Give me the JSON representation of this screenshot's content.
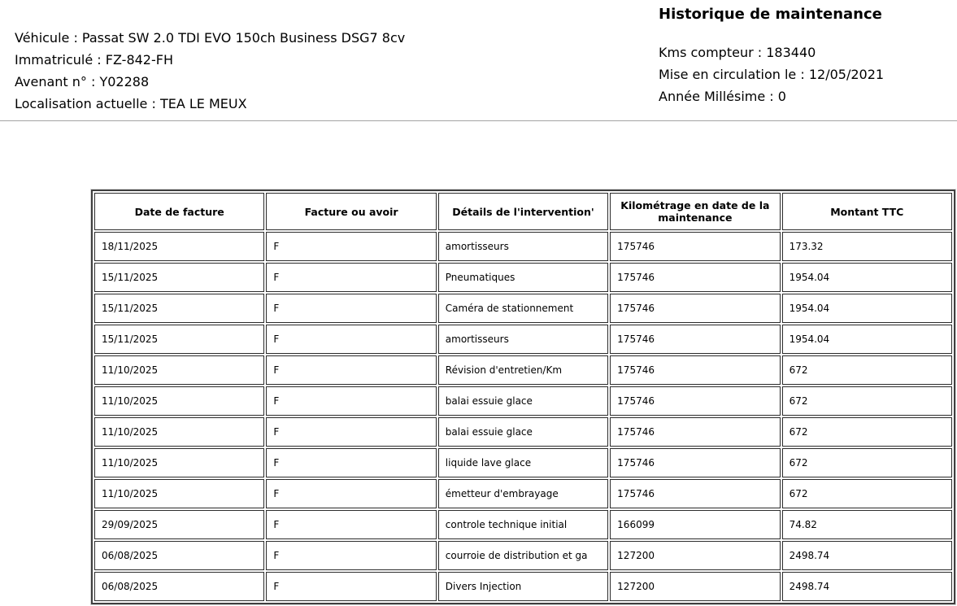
{
  "vehicle_info": {
    "lines": [
      "Véhicule : Passat SW 2.0 TDI EVO 150ch Business DSG7 8cv",
      "Immatriculé : FZ-842-FH",
      "Avenant n° : Y02288",
      "Localisation actuelle : TEA LE MEUX"
    ]
  },
  "report": {
    "title": "Historique de maintenance",
    "lines": [
      "Kms compteur : 183440",
      "Mise en circulation le : 12/05/2021",
      "Année Millésime : 0"
    ]
  },
  "table": {
    "columns": [
      "Date de facture",
      "Facture ou avoir",
      "Détails de l'intervention'",
      "Kilométrage en date de la maintenance",
      "Montant TTC"
    ],
    "rows": [
      {
        "date": "18/11/2025",
        "type": "F",
        "details": "amortisseurs",
        "km": "175746",
        "amount": "173.32"
      },
      {
        "date": "15/11/2025",
        "type": "F",
        "details": "Pneumatiques",
        "km": "175746",
        "amount": "1954.04"
      },
      {
        "date": "15/11/2025",
        "type": "F",
        "details": "Caméra de stationnement",
        "km": "175746",
        "amount": "1954.04"
      },
      {
        "date": "15/11/2025",
        "type": "F",
        "details": "amortisseurs",
        "km": "175746",
        "amount": "1954.04"
      },
      {
        "date": "11/10/2025",
        "type": "F",
        "details": "Révision d'entretien/Km",
        "km": "175746",
        "amount": "672"
      },
      {
        "date": "11/10/2025",
        "type": "F",
        "details": "balai essuie glace",
        "km": "175746",
        "amount": "672"
      },
      {
        "date": "11/10/2025",
        "type": "F",
        "details": "balai essuie glace",
        "km": "175746",
        "amount": "672"
      },
      {
        "date": "11/10/2025",
        "type": "F",
        "details": "liquide lave glace",
        "km": "175746",
        "amount": "672"
      },
      {
        "date": "11/10/2025",
        "type": "F",
        "details": "émetteur d'embrayage",
        "km": "175746",
        "amount": "672"
      },
      {
        "date": "29/09/2025",
        "type": "F",
        "details": "controle technique initial",
        "km": "166099",
        "amount": "74.82"
      },
      {
        "date": "06/08/2025",
        "type": "F",
        "details": "courroie de distribution et ga",
        "km": "127200",
        "amount": "2498.74"
      },
      {
        "date": "06/08/2025",
        "type": "F",
        "details": "Divers Injection",
        "km": "127200",
        "amount": "2498.74"
      }
    ]
  },
  "colors": {
    "text": "#000000",
    "divider": "#a3a3a3",
    "table_border": "#2b2b2b"
  }
}
